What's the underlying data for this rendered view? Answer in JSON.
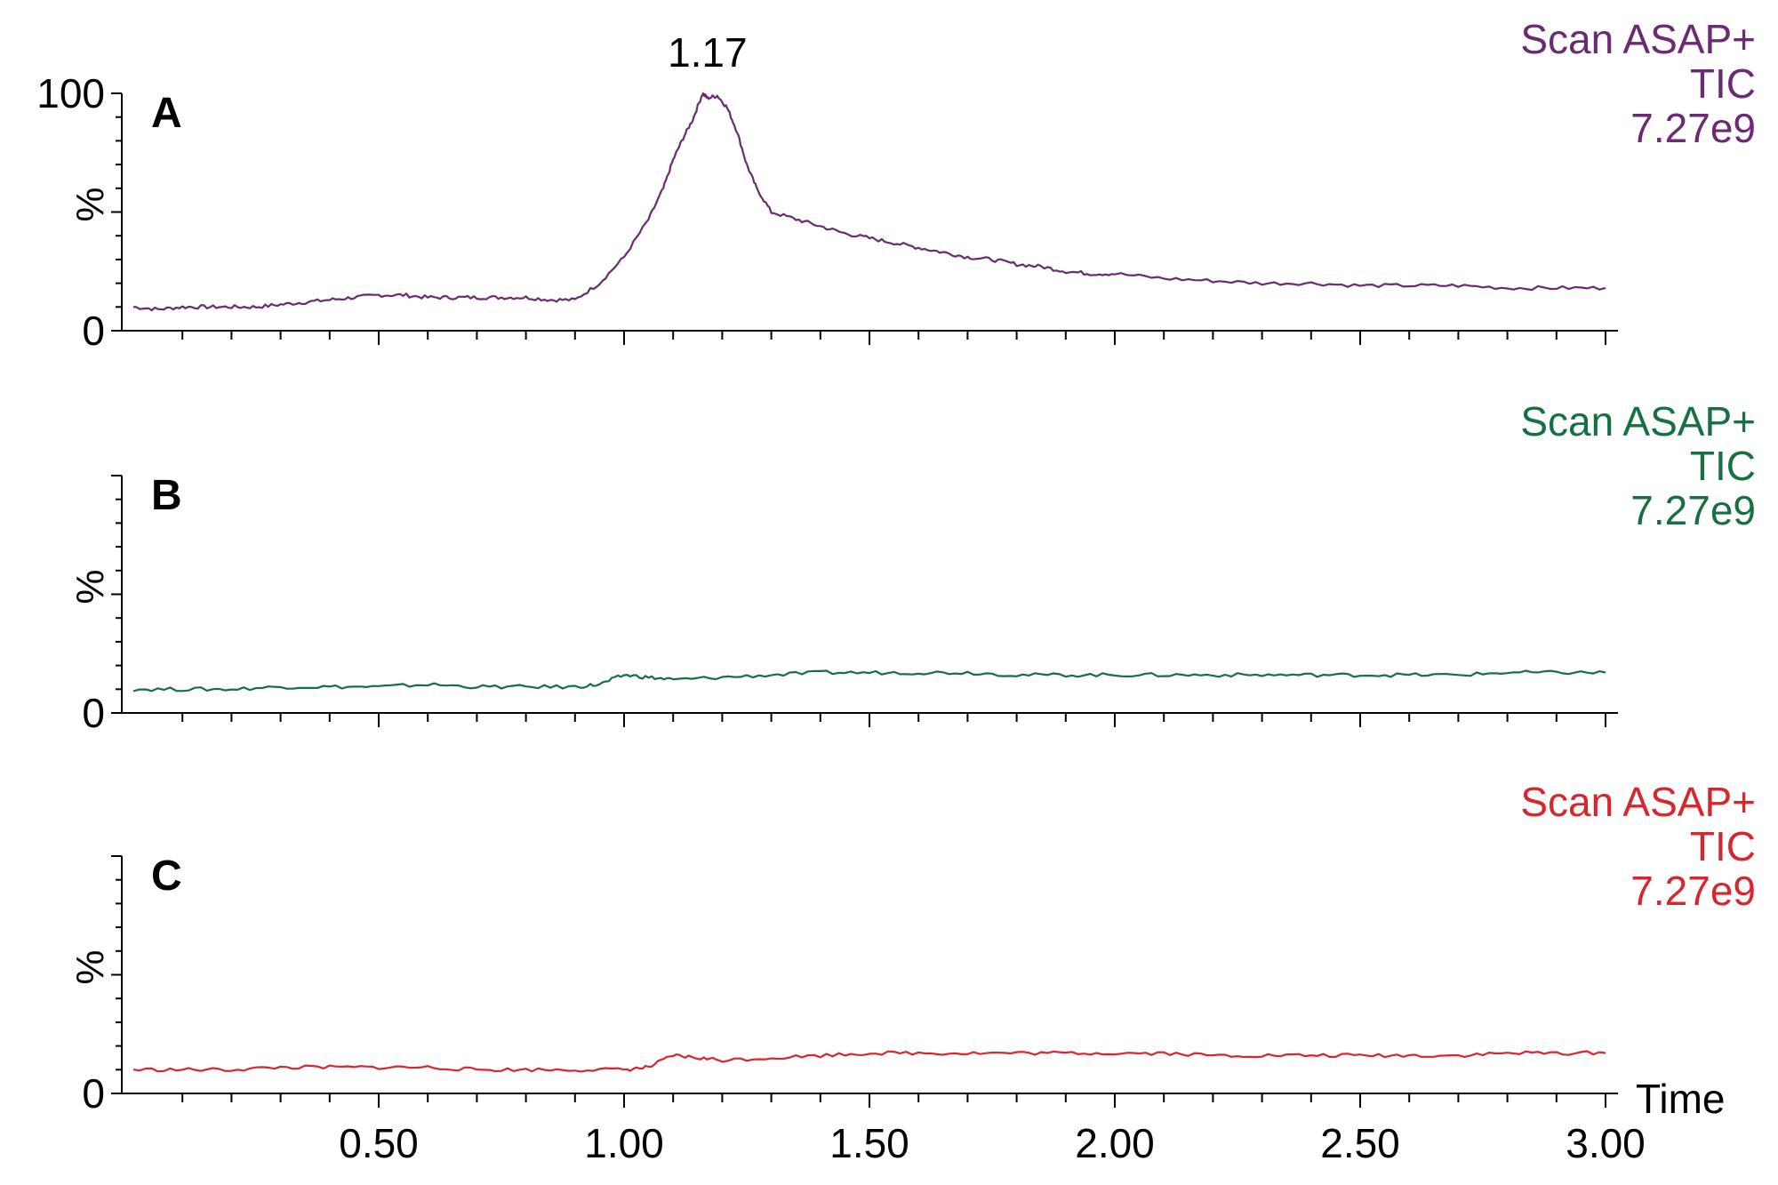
{
  "chart_data": {
    "type": "line",
    "x_unit_label": "Time",
    "xlim": [
      0.0,
      3.0
    ],
    "x_tick_labels": [
      "0.50",
      "1.00",
      "1.50",
      "2.00",
      "2.50",
      "3.00"
    ],
    "x_tick_values": [
      0.5,
      1.0,
      1.5,
      2.0,
      2.5,
      3.0
    ],
    "ylabel": "%",
    "ylim": [
      0,
      100
    ],
    "panels": [
      {
        "label": "A",
        "color": "#6b2a73",
        "legend": [
          "Scan ASAP+",
          "TIC",
          "7.27e9"
        ],
        "y_tick_labels": [
          "100",
          "0"
        ],
        "peak_annotation": {
          "text": "1.17",
          "x": 1.17
        },
        "series": {
          "x": [
            0.0,
            0.05,
            0.1,
            0.15,
            0.2,
            0.25,
            0.3,
            0.35,
            0.4,
            0.45,
            0.5,
            0.55,
            0.6,
            0.65,
            0.7,
            0.75,
            0.8,
            0.85,
            0.9,
            0.95,
            1.0,
            1.05,
            1.08,
            1.1,
            1.12,
            1.14,
            1.16,
            1.17,
            1.19,
            1.21,
            1.23,
            1.25,
            1.27,
            1.3,
            1.35,
            1.4,
            1.45,
            1.5,
            1.55,
            1.6,
            1.65,
            1.7,
            1.75,
            1.8,
            1.85,
            1.9,
            1.95,
            2.0,
            2.1,
            2.2,
            2.3,
            2.4,
            2.5,
            2.6,
            2.7,
            2.8,
            2.9,
            3.0
          ],
          "y": [
            10,
            9,
            10,
            10,
            10,
            10,
            11,
            12,
            13,
            14,
            15,
            15,
            14,
            14,
            14,
            14,
            14,
            13,
            13,
            20,
            31,
            47,
            60,
            72,
            81,
            89,
            100,
            98,
            99,
            94,
            84,
            70,
            60,
            50,
            47,
            44,
            41,
            39,
            37,
            35,
            33,
            31,
            30,
            28,
            27,
            25,
            24,
            24,
            22,
            21,
            20,
            20,
            19,
            19,
            19,
            18,
            18,
            18
          ]
        }
      },
      {
        "label": "B",
        "color": "#16703f",
        "legend": [
          "Scan ASAP+",
          "TIC",
          "7.27e9"
        ],
        "y_tick_labels": [
          "0"
        ],
        "series": {
          "x": [
            0.0,
            0.1,
            0.2,
            0.3,
            0.4,
            0.5,
            0.6,
            0.7,
            0.8,
            0.9,
            0.95,
            1.0,
            1.05,
            1.1,
            1.2,
            1.3,
            1.4,
            1.5,
            1.6,
            1.7,
            1.8,
            1.9,
            2.0,
            2.1,
            2.2,
            2.3,
            2.4,
            2.5,
            2.6,
            2.7,
            2.8,
            2.9,
            3.0
          ],
          "y": [
            10,
            10,
            10,
            11,
            11,
            11,
            12,
            11,
            11,
            11,
            12,
            16,
            15,
            14,
            15,
            16,
            17,
            17,
            17,
            17,
            16,
            16,
            16,
            16,
            16,
            16,
            16,
            16,
            16,
            16,
            17,
            17,
            17
          ]
        }
      },
      {
        "label": "C",
        "color": "#d8262f",
        "legend": [
          "Scan ASAP+",
          "TIC",
          "7.27e9"
        ],
        "y_tick_labels": [
          "0"
        ],
        "series": {
          "x": [
            0.0,
            0.1,
            0.2,
            0.3,
            0.4,
            0.5,
            0.6,
            0.7,
            0.8,
            0.9,
            1.0,
            1.05,
            1.1,
            1.15,
            1.2,
            1.3,
            1.4,
            1.5,
            1.6,
            1.7,
            1.8,
            1.9,
            2.0,
            2.1,
            2.2,
            2.3,
            2.4,
            2.5,
            2.6,
            2.7,
            2.8,
            2.9,
            3.0
          ],
          "y": [
            10,
            10,
            10,
            11,
            11,
            11,
            11,
            10,
            10,
            10,
            10,
            11,
            16,
            15,
            14,
            15,
            16,
            17,
            17,
            17,
            17,
            17,
            17,
            17,
            16,
            16,
            16,
            16,
            16,
            16,
            17,
            17,
            17
          ]
        }
      }
    ]
  }
}
